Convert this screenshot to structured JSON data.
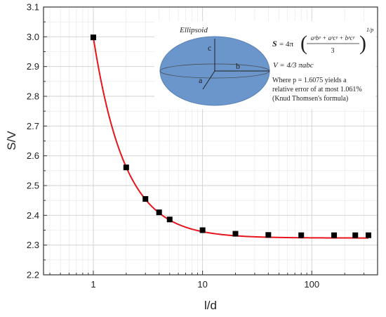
{
  "chart_data": {
    "type": "scatter",
    "title": "",
    "xlabel": "l/d",
    "ylabel": "S/V",
    "xscale": "log",
    "xlim": [
      0.35,
      400
    ],
    "ylim": [
      2.2,
      3.1
    ],
    "yticks": [
      2.2,
      2.3,
      2.4,
      2.5,
      2.6,
      2.7,
      2.8,
      2.9,
      3.0,
      3.1
    ],
    "ytick_labels": [
      "2.2",
      "2.3",
      "2.4",
      "2.5",
      "2.6",
      "2.7",
      "2.8",
      "2.9",
      "3.0",
      "3.1"
    ],
    "xticks": [
      1,
      10,
      100
    ],
    "xtick_labels": [
      "1",
      "10",
      "100"
    ],
    "grid": true,
    "series": [
      {
        "marker": "square",
        "color": "#000000",
        "x": [
          1,
          2,
          3,
          4,
          5,
          10,
          20,
          40,
          80,
          160,
          250,
          330
        ],
        "y": [
          2.998,
          2.561,
          2.455,
          2.41,
          2.386,
          2.35,
          2.338,
          2.334,
          2.333,
          2.333,
          2.333,
          2.333
        ]
      },
      {
        "type": "line",
        "color": "#e8141b",
        "model": {
          "asymptote": 2.3237,
          "amplitude": 0.6743,
          "decay_exponent": 1.5
        }
      }
    ]
  },
  "inset": {
    "title": "Ellipsoid",
    "axis_labels": {
      "a": "a",
      "b": "b",
      "c": "c"
    },
    "fill_color": "#6b96cb",
    "formula_s_lhs": "S",
    "formula_s_rhs": "= 4π",
    "formula_s_num": "aᵖbᵖ + aᵖcᵖ + bᵖcᵖ",
    "formula_s_den": "3",
    "formula_s_exp": "1/p",
    "formula_v": "V = 4/3 πabc",
    "note_lines": [
      "Where p = 1.6075 yields a",
      "relative error of at most 1.061%",
      "(Knud Thomsen's formula)"
    ]
  }
}
